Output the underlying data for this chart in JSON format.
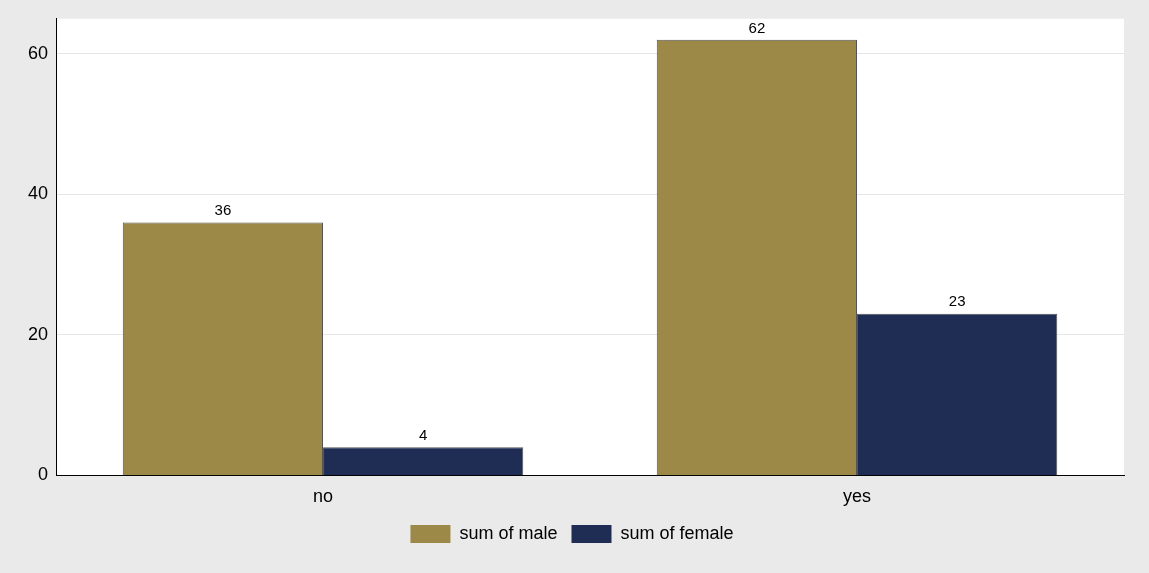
{
  "chart_data": {
    "type": "bar",
    "categories": [
      "no",
      "yes"
    ],
    "series": [
      {
        "name": "sum of male",
        "color": "#9c8847",
        "values": [
          36,
          62
        ]
      },
      {
        "name": "sum of female",
        "color": "#1f2d55",
        "values": [
          4,
          23
        ]
      }
    ],
    "ylim": [
      0,
      65
    ],
    "yticks": [
      0,
      20,
      40,
      60
    ],
    "grid": "y",
    "legend": "bottom",
    "data_labels": true
  }
}
